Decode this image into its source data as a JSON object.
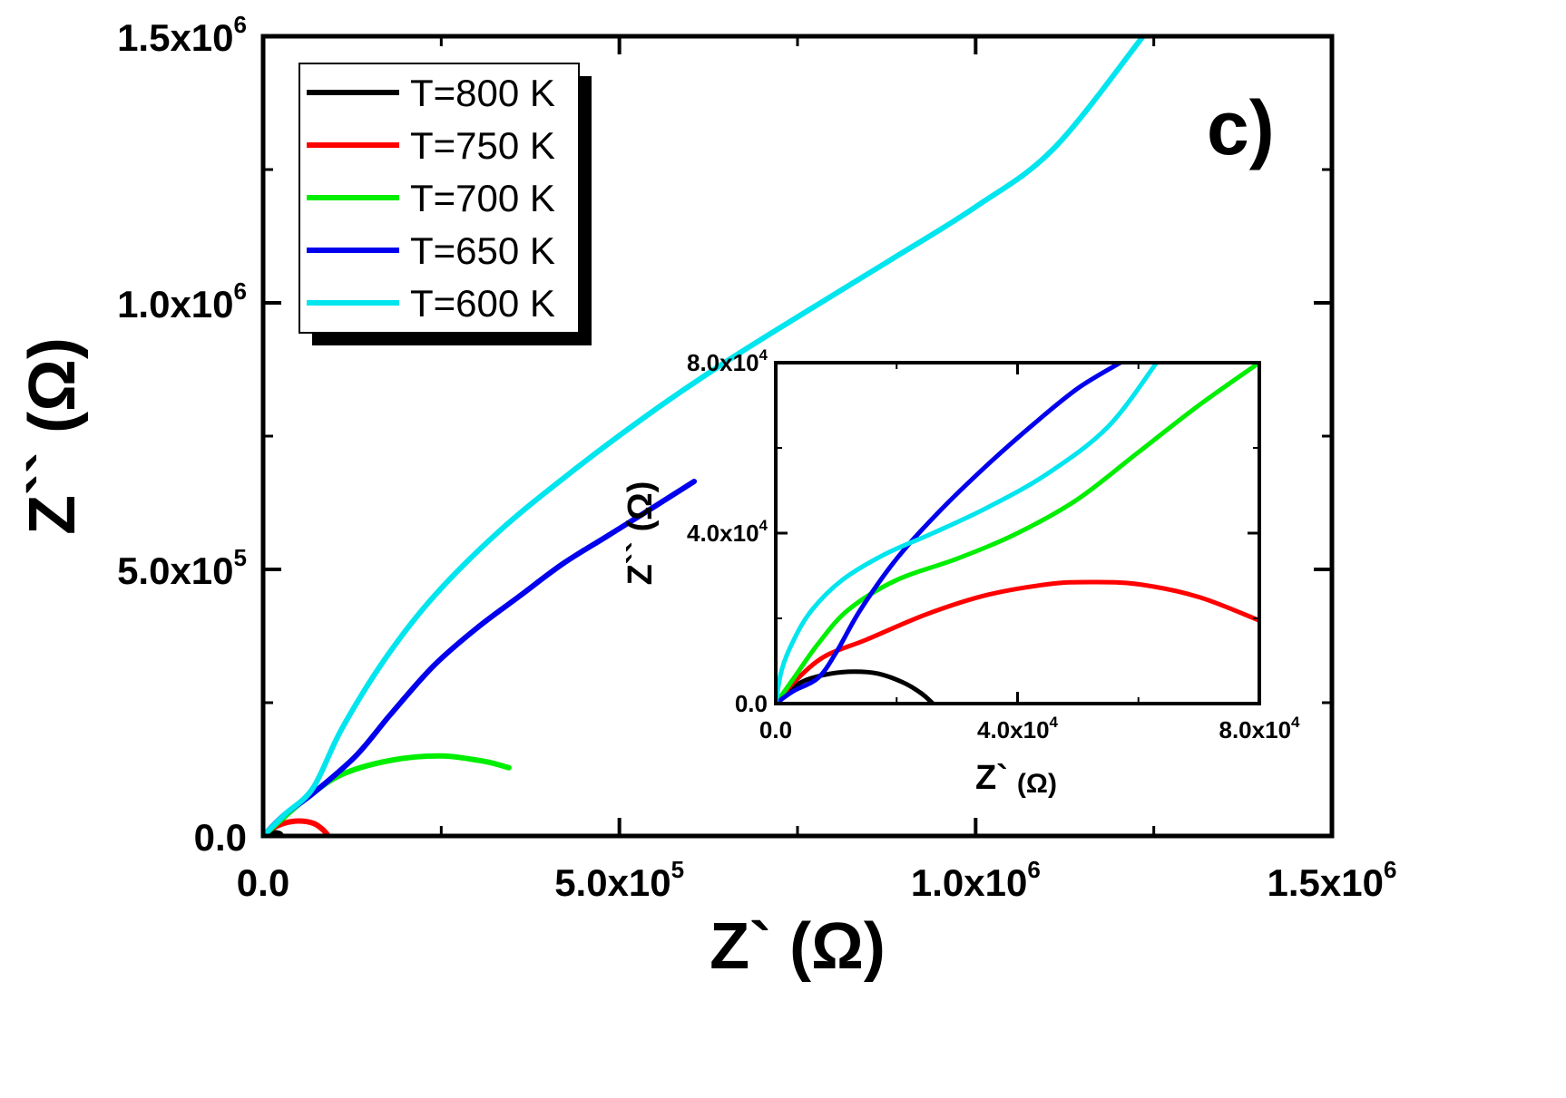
{
  "chart_data": [
    {
      "type": "line",
      "panel_label": "c)",
      "xlabel": "Z` (Ω)",
      "ylabel": "Z`` (Ω)",
      "xlim": [
        0,
        1500000
      ],
      "ylim": [
        0,
        1500000
      ],
      "xticks": [
        {
          "mantissa": "0.0",
          "exponent": ""
        },
        {
          "mantissa": "5.0x10",
          "exponent": "5"
        },
        {
          "mantissa": "1.0x10",
          "exponent": "6"
        },
        {
          "mantissa": "1.5x10",
          "exponent": "6"
        }
      ],
      "xtick_values": [
        0,
        500000,
        1000000,
        1500000
      ],
      "yticks": [
        {
          "mantissa": "0.0",
          "exponent": ""
        },
        {
          "mantissa": "5.0x10",
          "exponent": "5"
        },
        {
          "mantissa": "1.0x10",
          "exponent": "6"
        },
        {
          "mantissa": "1.5x10",
          "exponent": "6"
        }
      ],
      "ytick_values": [
        0,
        500000,
        1000000,
        1500000
      ],
      "legend_position": "top-left",
      "series": [
        {
          "name": "T=800 K",
          "color": "#000000",
          "x": [
            0,
            10000,
            22000,
            26000
          ],
          "y": [
            0,
            6000,
            5000,
            0
          ]
        },
        {
          "name": "T=750 K",
          "color": "#ff0000",
          "x": [
            0,
            10000,
            30000,
            50000,
            70000,
            82000,
            90000
          ],
          "y": [
            0,
            12000,
            24000,
            28000,
            24000,
            14000,
            3000
          ]
        },
        {
          "name": "T=700 K",
          "color": "#00ee00",
          "x": [
            0,
            25000,
            60000,
            110000,
            180000,
            250000,
            310000,
            345000
          ],
          "y": [
            0,
            30000,
            70000,
            115000,
            142000,
            150000,
            140000,
            128000
          ]
        },
        {
          "name": "T=650 K",
          "color": "#0000ee",
          "x": [
            0,
            30000,
            70000,
            130000,
            180000,
            240000,
            300000,
            360000,
            420000,
            480000,
            540000,
            605000
          ],
          "y": [
            0,
            40000,
            80000,
            150000,
            230000,
            320000,
            390000,
            450000,
            510000,
            560000,
            610000,
            665000
          ]
        },
        {
          "name": "T=600 K",
          "color": "#00e5ee",
          "x": [
            0,
            30000,
            70000,
            110000,
            170000,
            240000,
            330000,
            430000,
            540000,
            650000,
            770000,
            880000,
            1000000,
            1110000,
            1235000
          ],
          "y": [
            0,
            40000,
            90000,
            200000,
            330000,
            450000,
            570000,
            680000,
            790000,
            890000,
            990000,
            1080000,
            1180000,
            1290000,
            1500000
          ]
        }
      ]
    },
    {
      "type": "line",
      "role": "inset",
      "xlabel_main": "Z`",
      "xlabel_unit": "(Ω)",
      "ylabel": "Z`` (Ω)",
      "xlim": [
        0,
        80000
      ],
      "ylim": [
        0,
        80000
      ],
      "xticks": [
        {
          "mantissa": "0.0",
          "exponent": ""
        },
        {
          "mantissa": "4.0x10",
          "exponent": "4"
        },
        {
          "mantissa": "8.0x10",
          "exponent": "4"
        }
      ],
      "xtick_values": [
        0,
        40000,
        80000
      ],
      "yticks": [
        {
          "mantissa": "0.0",
          "exponent": ""
        },
        {
          "mantissa": "4.0x10",
          "exponent": "4"
        },
        {
          "mantissa": "8.0x10",
          "exponent": "4"
        }
      ],
      "ytick_values": [
        0,
        40000,
        80000
      ],
      "series": [
        {
          "name": "T=800 K",
          "color": "#000000",
          "x": [
            0,
            2000,
            5000,
            9000,
            13000,
            17000,
            21000,
            24000,
            26000
          ],
          "y": [
            0,
            3000,
            5500,
            7000,
            7500,
            7000,
            5000,
            2500,
            0
          ]
        },
        {
          "name": "T=750 K",
          "color": "#ff0000",
          "x": [
            0,
            3000,
            8000,
            15000,
            25000,
            35000,
            45000,
            52000,
            60000,
            70000,
            80000
          ],
          "y": [
            0,
            5000,
            11000,
            15000,
            21000,
            25500,
            28000,
            28500,
            28000,
            25000,
            19500
          ]
        },
        {
          "name": "T=700 K",
          "color": "#00ee00",
          "x": [
            0,
            3000,
            7000,
            12000,
            20000,
            30000,
            40000,
            50000,
            60000,
            70000,
            80000
          ],
          "y": [
            0,
            6000,
            14000,
            22000,
            29000,
            34000,
            40000,
            48000,
            59000,
            70000,
            80000
          ]
        },
        {
          "name": "T=650 K",
          "color": "#0000ee",
          "x": [
            0,
            3000,
            7000,
            10000,
            14000,
            20000,
            27000,
            35000,
            43000,
            50000,
            57000
          ],
          "y": [
            0,
            3000,
            6000,
            12000,
            22000,
            34000,
            45000,
            56000,
            66000,
            74000,
            80000
          ]
        },
        {
          "name": "T=600 K",
          "color": "#00e5ee",
          "x": [
            0,
            1000,
            3000,
            6000,
            11000,
            18000,
            26000,
            35000,
            45000,
            55000,
            63000
          ],
          "y": [
            0,
            8000,
            15000,
            22000,
            29000,
            35000,
            40000,
            46000,
            54000,
            65000,
            80000
          ]
        }
      ]
    }
  ]
}
